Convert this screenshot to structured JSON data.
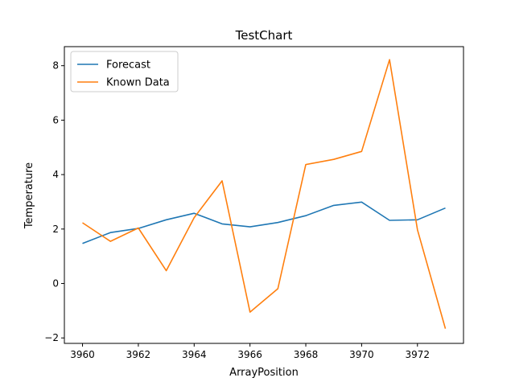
{
  "chart_data": {
    "type": "line",
    "title": "TestChart",
    "xlabel": "ArrayPosition",
    "ylabel": "Temperature",
    "x": [
      3960,
      3961,
      3962,
      3963,
      3964,
      3965,
      3966,
      3967,
      3968,
      3969,
      3970,
      3971,
      3972,
      3973
    ],
    "xlim": [
      3959.35,
      3973.65
    ],
    "ylim": [
      -2.2,
      8.7
    ],
    "xticks": [
      3960,
      3962,
      3964,
      3966,
      3968,
      3970,
      3972
    ],
    "yticks": [
      -2,
      0,
      2,
      4,
      6,
      8
    ],
    "grid": false,
    "legend_position": "top-left",
    "series": [
      {
        "name": "Forecast",
        "color": "#1f77b4",
        "values": [
          1.47,
          1.87,
          2.02,
          2.34,
          2.58,
          2.19,
          2.08,
          2.24,
          2.49,
          2.87,
          2.99,
          2.32,
          2.34,
          2.77
        ]
      },
      {
        "name": "Known Data",
        "color": "#ff7f0e",
        "values": [
          2.23,
          1.55,
          2.04,
          0.47,
          2.42,
          3.77,
          -1.05,
          -0.19,
          4.37,
          4.56,
          4.85,
          8.22,
          1.97,
          -1.66
        ]
      }
    ]
  }
}
